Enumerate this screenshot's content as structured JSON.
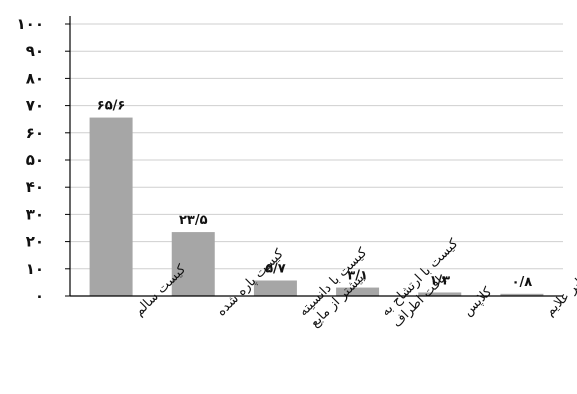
{
  "chart_data": {
    "type": "bar",
    "categories": [
      [
        "کیست سالم"
      ],
      [
        "کیست پاره شده"
      ],
      [
        "کیست با دانسیته",
        "بیشتر از مایع"
      ],
      [
        "کیست با ارتشاح به",
        "بافت اطراف"
      ],
      [
        "کلاپس"
      ],
      [
        "سایر علایم"
      ]
    ],
    "values": [
      65.6,
      23.5,
      5.7,
      3.1,
      1.3,
      0.8
    ],
    "value_labels": [
      "۶۵/۶",
      "۲۳/۵",
      "۵/۷",
      "۳/۱",
      "۱/۳",
      "۰/۸"
    ],
    "ytick_values": [
      0,
      10,
      20,
      30,
      40,
      50,
      60,
      70,
      80,
      90,
      100
    ],
    "ytick_labels": [
      "۰",
      "۱۰",
      "۲۰",
      "۳۰",
      "۴۰",
      "۵۰",
      "۶۰",
      "۷۰",
      "۸۰",
      "۹۰",
      "۱۰۰"
    ],
    "ylim": [
      0,
      100
    ],
    "grid": true,
    "bar_color": "#a6a6a6",
    "grid_color": "#cfcfcf",
    "axis_color": "#000000"
  }
}
